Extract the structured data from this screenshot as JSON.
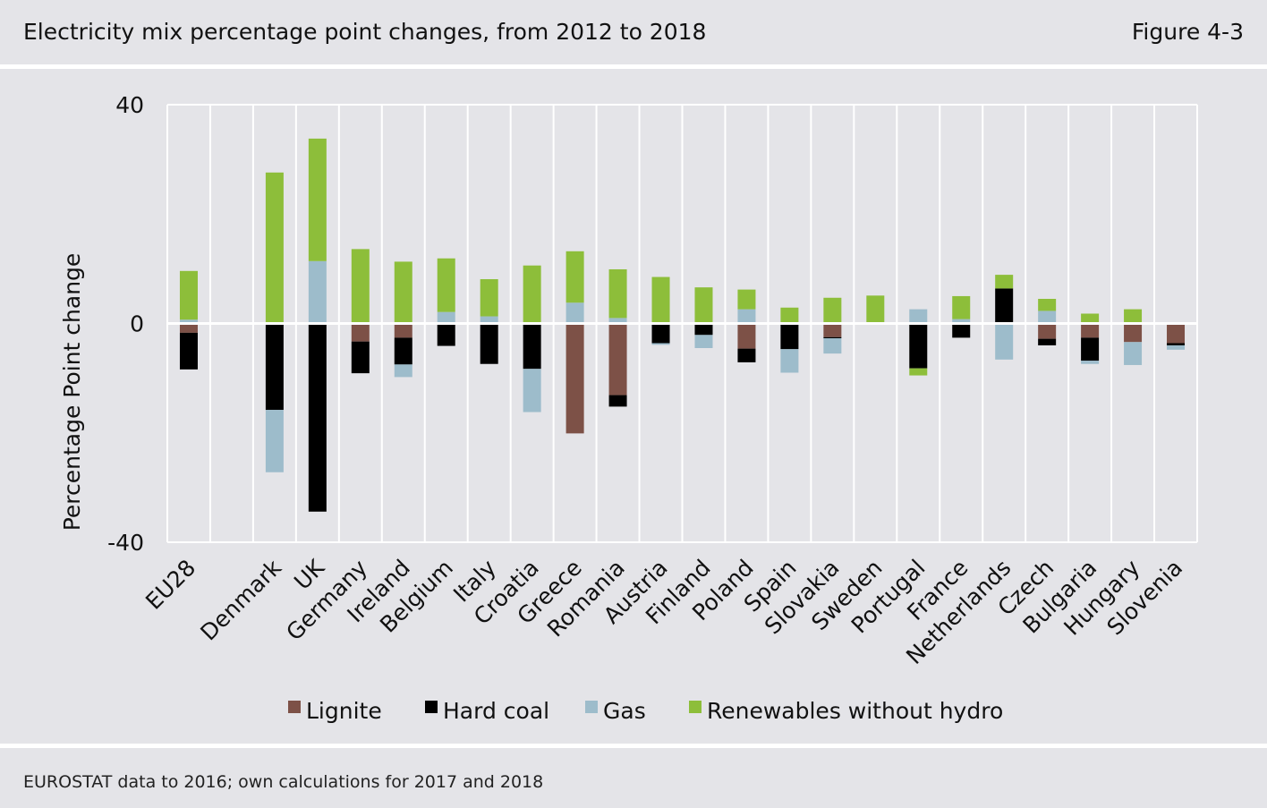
{
  "header": {
    "title": "Electricity mix percentage point changes, from 2012 to 2018",
    "figure_label": "Figure 4-3"
  },
  "footer": {
    "source": "EUROSTAT data to 2016; own calculations for 2017 and 2018"
  },
  "colors": {
    "Lignite": "#7d5147",
    "Hard coal": "#000000",
    "Gas": "#9dbccb",
    "Renewables without hydro": "#8dbe3a",
    "gridline": "#ffffff",
    "background": "#e4e4e8"
  },
  "chart_data": {
    "type": "bar",
    "stacked": true,
    "ylabel": "Percentage Point change",
    "xlabel": "",
    "ylim": [
      -40,
      40
    ],
    "yticks": [
      40,
      0,
      -40
    ],
    "grid": "vertical",
    "legend_position": "bottom",
    "categories": [
      "EU28",
      "",
      "Denmark",
      "UK",
      "Germany",
      "Ireland",
      "Belgium",
      "Italy",
      "Croatia",
      "Greece",
      "Romania",
      "Austria",
      "Finland",
      "Poland",
      "Spain",
      "Slovakia",
      "Sweden",
      "Portugal",
      "France",
      "Netherlands",
      "Czech",
      "Bulgaria",
      "Hungary",
      "Slovenia"
    ],
    "series": [
      {
        "name": "Lignite",
        "values": [
          -1.7,
          0,
          0,
          0,
          -3.3,
          -2.6,
          0,
          0,
          0,
          -20.1,
          -13.1,
          0,
          0,
          -4.6,
          0,
          -2.5,
          0,
          0,
          0,
          0,
          -2.8,
          -2.6,
          -3.4,
          -3.6
        ]
      },
      {
        "name": "Hard coal",
        "values": [
          -6.7,
          0,
          -15.8,
          -34.4,
          -5.8,
          -4.9,
          -4.1,
          -7.4,
          -8.3,
          0,
          -2.1,
          -3.6,
          -2.1,
          -2.5,
          -4.7,
          -0.2,
          0,
          -8.2,
          -2.6,
          6.4,
          -1.2,
          -4.2,
          0,
          -0.4
        ]
      },
      {
        "name": "Gas",
        "values": [
          0.7,
          0,
          -11.4,
          11.4,
          0,
          -2.3,
          2.1,
          1.3,
          -7.9,
          3.8,
          1.0,
          -0.3,
          -2.4,
          2.6,
          -4.3,
          -2.8,
          -0.2,
          2.6,
          0.8,
          -6.6,
          2.3,
          -0.6,
          -4.2,
          -0.8
        ]
      },
      {
        "name": "Renewables without hydro",
        "values": [
          8.9,
          0,
          27.6,
          22.4,
          13.6,
          11.3,
          9.8,
          6.8,
          10.6,
          9.4,
          8.9,
          8.5,
          6.6,
          3.6,
          2.9,
          4.7,
          5.1,
          -1.3,
          4.2,
          2.5,
          2.2,
          1.8,
          2.6,
          0
        ]
      }
    ]
  }
}
